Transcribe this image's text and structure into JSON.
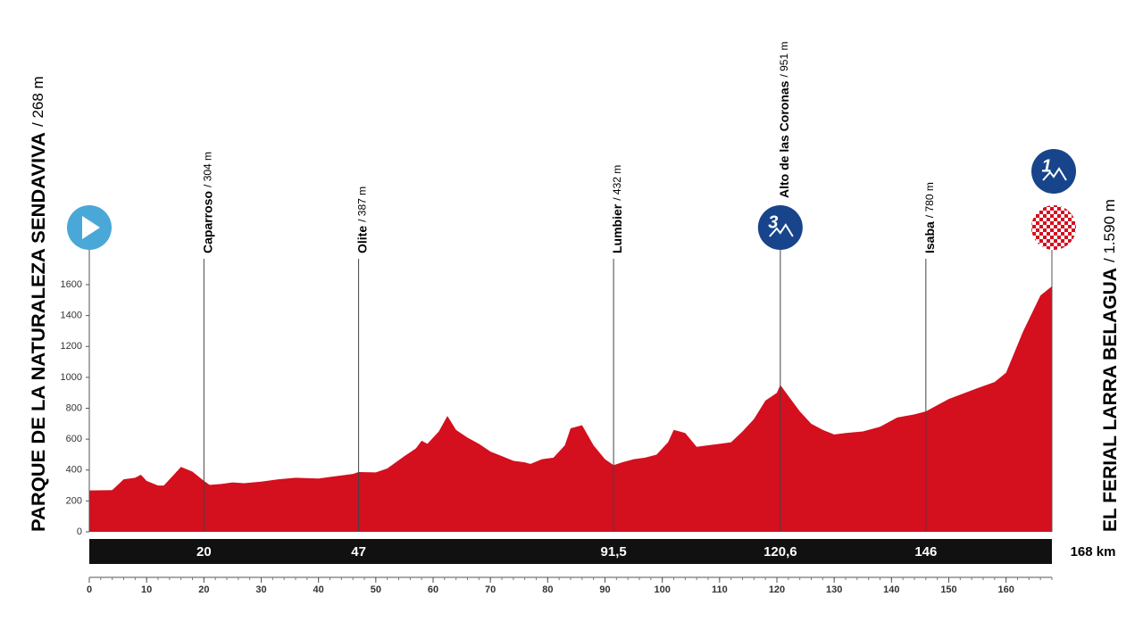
{
  "chart_data": {
    "type": "area",
    "color": "#d40f1e",
    "start": {
      "name": "PARQUE DE LA NATURALEZA SENDAVIVA",
      "elevation_label": "/ 268 m"
    },
    "finish": {
      "name": "EL FERIAL LARRA BELAGUA",
      "elevation_label": "/ 1.590 m",
      "distance_label": "168 km",
      "category": 1
    },
    "places": [
      {
        "name": "Caparroso",
        "elevation_label": "/ 304 m",
        "km": 20
      },
      {
        "name": "Olite",
        "elevation_label": "/ 387 m",
        "km": 47
      },
      {
        "name": "Lumbier",
        "elevation_label": "/ 432 m",
        "km": 91.5,
        "km_label": "91,5"
      },
      {
        "name": "Alto de las Coronas",
        "elevation_label": "/ 951 m",
        "km": 120.6,
        "km_label": "120,6",
        "category": 3
      },
      {
        "name": "Isaba",
        "elevation_label": "/ 780 m",
        "km": 146
      }
    ],
    "x": [
      0,
      4,
      6,
      8,
      9,
      10,
      12,
      13,
      15,
      16,
      18,
      20,
      21,
      23,
      25,
      27,
      30,
      33,
      36,
      40,
      43,
      46,
      47,
      50,
      52,
      55,
      57,
      58,
      59,
      61,
      62.5,
      64,
      66,
      68,
      70,
      72,
      74,
      76,
      77,
      79,
      81,
      83,
      84,
      86,
      88,
      90,
      91.5,
      93,
      95,
      97,
      99,
      101,
      102,
      104,
      106,
      108,
      110,
      112,
      114,
      116,
      118,
      120,
      120.6,
      122,
      124,
      126,
      128,
      130,
      132,
      135,
      138,
      141,
      144,
      146,
      150,
      155,
      158,
      160,
      163,
      166,
      168
    ],
    "values": [
      268,
      270,
      340,
      350,
      370,
      330,
      300,
      300,
      380,
      420,
      390,
      330,
      304,
      310,
      320,
      315,
      325,
      340,
      350,
      345,
      360,
      375,
      387,
      385,
      410,
      490,
      540,
      590,
      570,
      650,
      750,
      660,
      610,
      570,
      520,
      490,
      460,
      450,
      440,
      470,
      480,
      560,
      670,
      690,
      560,
      470,
      432,
      450,
      470,
      480,
      500,
      580,
      660,
      640,
      550,
      560,
      570,
      580,
      650,
      730,
      850,
      900,
      951,
      880,
      780,
      700,
      660,
      630,
      640,
      650,
      680,
      740,
      760,
      780,
      860,
      930,
      970,
      1030,
      1300,
      1530,
      1590
    ],
    "xlim": [
      0,
      168
    ],
    "xticks": [
      0,
      10,
      20,
      30,
      40,
      50,
      60,
      70,
      80,
      90,
      100,
      110,
      120,
      130,
      140,
      150,
      160
    ],
    "ylim": [
      0,
      1600
    ],
    "yticks": [
      0,
      200,
      400,
      600,
      800,
      1000,
      1200,
      1400,
      1600
    ]
  }
}
